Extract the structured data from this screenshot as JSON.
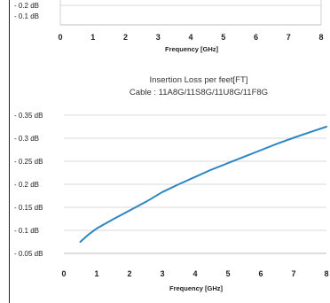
{
  "chart_data": [
    {
      "type": "line",
      "partial": true,
      "title": "",
      "subtitle": "",
      "xlabel": "Frequency [GHz]",
      "ylabel": "",
      "x_ticks": [
        "0",
        "1",
        "2",
        "3",
        "4",
        "5",
        "6",
        "7",
        "8"
      ],
      "y_ticks": [
        "- 0.2 dB",
        "- 0.1 dB"
      ],
      "xlim": [
        0,
        8
      ],
      "grid": true,
      "series": []
    },
    {
      "type": "line",
      "title": "Insertion Loss per feet[FT]",
      "subtitle": "Cable : 11A8G/11S8G/11U8G/11F8G",
      "xlabel": "Frequency [GHz]",
      "ylabel": "",
      "x_ticks": [
        "0",
        "1",
        "2",
        "3",
        "4",
        "5",
        "6",
        "7",
        "8"
      ],
      "y_ticks": [
        "- 0.35 dB",
        "- 0.3 dB",
        "- 0.25 dB",
        "- 0.2 dB",
        "- 0.15 dB",
        "- 0.1 dB",
        "- 0.05 dB"
      ],
      "xlim": [
        0,
        8
      ],
      "ylim": [
        0.05,
        0.35
      ],
      "grid": true,
      "series": [
        {
          "color": "#2e86c1",
          "x": [
            0.5,
            0.75,
            1,
            1.5,
            2,
            2.5,
            3,
            3.5,
            4,
            4.5,
            5,
            5.5,
            6,
            6.5,
            7,
            7.5,
            8
          ],
          "y": [
            0.075,
            0.091,
            0.104,
            0.124,
            0.143,
            0.162,
            0.183,
            0.2,
            0.216,
            0.232,
            0.246,
            0.26,
            0.274,
            0.288,
            0.301,
            0.313,
            0.325
          ]
        }
      ]
    }
  ]
}
